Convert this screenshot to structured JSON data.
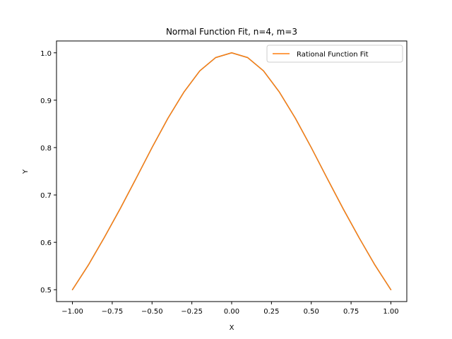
{
  "chart_data": {
    "type": "line",
    "title": "Normal Function Fit, n=4, m=3",
    "xlabel": "X",
    "ylabel": "Y",
    "xlim": [
      -1.1,
      1.1
    ],
    "ylim": [
      0.475,
      1.025
    ],
    "x_ticks": [
      -1.0,
      -0.75,
      -0.5,
      -0.25,
      0.0,
      0.25,
      0.5,
      0.75,
      1.0
    ],
    "x_tick_labels": [
      "−1.00",
      "−0.75",
      "−0.50",
      "−0.25",
      "0.00",
      "0.25",
      "0.50",
      "0.75",
      "1.00"
    ],
    "y_ticks": [
      0.5,
      0.6,
      0.7,
      0.8,
      0.9,
      1.0
    ],
    "y_tick_labels": [
      "0.5",
      "0.6",
      "0.7",
      "0.8",
      "0.9",
      "1.0"
    ],
    "grid": false,
    "legend_position": "upper-right",
    "series": [
      {
        "name": "Rational Function Fit",
        "color": "#1f77b4",
        "x": [
          -1.0,
          -0.9,
          -0.8,
          -0.7,
          -0.6,
          -0.5,
          -0.4,
          -0.3,
          -0.2,
          -0.1,
          0.0,
          0.1,
          0.2,
          0.3,
          0.4,
          0.5,
          0.6,
          0.7,
          0.8,
          0.9,
          1.0
        ],
        "y": [
          0.5,
          0.552,
          0.61,
          0.671,
          0.735,
          0.8,
          0.862,
          0.917,
          0.962,
          0.99,
          1.0,
          0.99,
          0.962,
          0.917,
          0.862,
          0.8,
          0.735,
          0.671,
          0.61,
          0.552,
          0.5
        ]
      },
      {
        "name": "",
        "color": "#ff7f0e",
        "x": [
          -1.0,
          -0.9,
          -0.8,
          -0.7,
          -0.6,
          -0.5,
          -0.4,
          -0.3,
          -0.2,
          -0.1,
          0.0,
          0.1,
          0.2,
          0.3,
          0.4,
          0.5,
          0.6,
          0.7,
          0.8,
          0.9,
          1.0
        ],
        "y": [
          0.5,
          0.552,
          0.61,
          0.671,
          0.735,
          0.8,
          0.862,
          0.917,
          0.962,
          0.99,
          1.0,
          0.99,
          0.962,
          0.917,
          0.862,
          0.8,
          0.735,
          0.671,
          0.61,
          0.552,
          0.5
        ]
      }
    ],
    "legend": [
      {
        "label": "Rational Function Fit",
        "color": "#ff7f0e"
      }
    ]
  }
}
